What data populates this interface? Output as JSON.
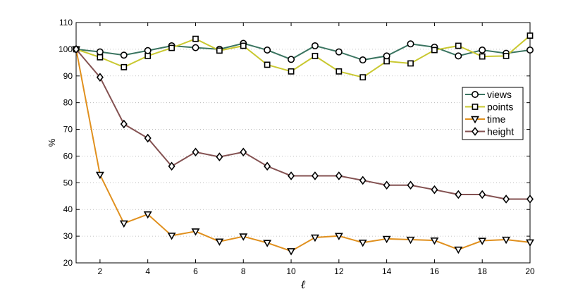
{
  "chart_data": {
    "type": "line",
    "xlabel": "ℓ",
    "ylabel": "%",
    "xlim": [
      1,
      20
    ],
    "ylim": [
      20,
      110
    ],
    "xticks": [
      2,
      4,
      6,
      8,
      10,
      12,
      14,
      16,
      18,
      20
    ],
    "yticks": [
      20,
      30,
      40,
      50,
      60,
      70,
      80,
      90,
      100,
      110
    ],
    "grid": "dotted-horizontal",
    "legend_position": "right",
    "x": [
      1,
      2,
      3,
      4,
      5,
      6,
      7,
      8,
      9,
      10,
      11,
      12,
      13,
      14,
      15,
      16,
      17,
      18,
      19,
      20
    ],
    "series": [
      {
        "name": "views",
        "marker": "circle",
        "color": "#3b7561",
        "values": [
          100,
          99,
          97.8,
          99.5,
          101.3,
          100.6,
          100,
          102.2,
          99.7,
          96.2,
          101.3,
          99,
          96,
          97.5,
          102,
          100.8,
          97.5,
          99.7,
          98.5,
          99.7
        ]
      },
      {
        "name": "points",
        "marker": "square",
        "color": "#c9c830",
        "values": [
          100,
          97,
          93.3,
          97.5,
          100.5,
          103.9,
          99.5,
          101.3,
          94.2,
          91.7,
          97.5,
          91.7,
          89.5,
          95.5,
          94.7,
          99.7,
          101.3,
          97.3,
          97.5,
          105.1
        ]
      },
      {
        "name": "time",
        "marker": "triangle-down",
        "color": "#e0901e",
        "values": [
          100,
          53,
          34.8,
          38.2,
          30.2,
          31.8,
          28,
          29.9,
          27.5,
          24.4,
          29.5,
          30.1,
          27.6,
          29,
          28.7,
          28.4,
          25,
          28.3,
          28.7,
          27.7
        ]
      },
      {
        "name": "height",
        "marker": "diamond",
        "color": "#845252",
        "values": [
          100,
          89.5,
          72,
          66.7,
          56.2,
          61.5,
          59.7,
          61.5,
          56.2,
          52.6,
          52.6,
          52.6,
          50.9,
          49.1,
          49.1,
          47.4,
          45.6,
          45.6,
          43.9,
          43.9
        ]
      }
    ]
  }
}
